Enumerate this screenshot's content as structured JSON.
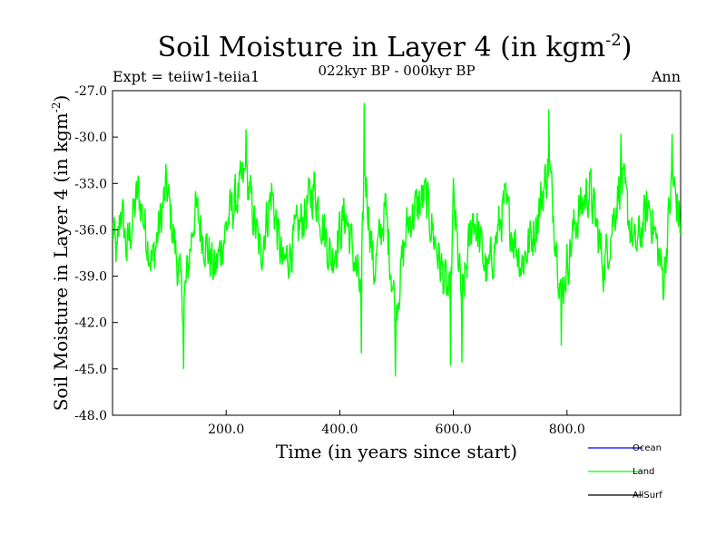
{
  "chart_data": {
    "type": "line",
    "title": "Soil Moisture in Layer 4 (in kgm",
    "title_superscript": "-2",
    "title_close": ")",
    "subtitle": "022kyr BP - 000kyr BP",
    "left_label": "Expt = teiiw1-teiia1",
    "right_label": "Ann",
    "xlabel": "Time (in years since start)",
    "ylabel": "Soil Moisture in Layer 4 (in kgm",
    "ylabel_superscript": "-2",
    "ylabel_close": ")",
    "xlim": [
      0,
      1000
    ],
    "ylim": [
      -48,
      -27
    ],
    "x_ticks": [
      200,
      400,
      600,
      800
    ],
    "x_tick_labels": [
      "200.0",
      "400.0",
      "600.0",
      "800.0"
    ],
    "y_ticks": [
      -27,
      -30,
      -33,
      -36,
      -39,
      -42,
      -45,
      -48
    ],
    "y_tick_labels": [
      "-27.0",
      "-30.0",
      "-33.0",
      "-36.0",
      "-39.0",
      "-42.0",
      "-45.0",
      "-48.0"
    ],
    "grid": false,
    "legend_position": "bottom-right",
    "series": [
      {
        "name": "Ocean",
        "color": "#0000ff",
        "values": []
      },
      {
        "name": "Land",
        "color": "#00ff00",
        "values": []
      },
      {
        "name": "AllSurf",
        "color": "#000000",
        "values": []
      }
    ],
    "key_points": [
      [
        0,
        -36.0
      ],
      [
        8,
        -39.5
      ],
      [
        15,
        -33.0
      ],
      [
        25,
        -38.5
      ],
      [
        45,
        -31.5
      ],
      [
        70,
        -40.0
      ],
      [
        95,
        -31.0
      ],
      [
        125,
        -45.0
      ],
      [
        145,
        -33.5
      ],
      [
        180,
        -41.0
      ],
      [
        205,
        -34.5
      ],
      [
        235,
        -29.5
      ],
      [
        260,
        -39.0
      ],
      [
        280,
        -31.5
      ],
      [
        300,
        -40.5
      ],
      [
        330,
        -35.5
      ],
      [
        355,
        -31.0
      ],
      [
        385,
        -39.5
      ],
      [
        410,
        -34.0
      ],
      [
        438,
        -44.0
      ],
      [
        443,
        -27.8
      ],
      [
        460,
        -41.0
      ],
      [
        480,
        -33.5
      ],
      [
        498,
        -45.5
      ],
      [
        520,
        -35.0
      ],
      [
        550,
        -32.0
      ],
      [
        575,
        -39.5
      ],
      [
        595,
        -44.8
      ],
      [
        600,
        -32.5
      ],
      [
        615,
        -44.6
      ],
      [
        635,
        -34.0
      ],
      [
        660,
        -41.5
      ],
      [
        690,
        -33.0
      ],
      [
        720,
        -40.0
      ],
      [
        745,
        -35.5
      ],
      [
        768,
        -28.2
      ],
      [
        790,
        -43.5
      ],
      [
        815,
        -35.0
      ],
      [
        840,
        -31.0
      ],
      [
        865,
        -40.5
      ],
      [
        895,
        -29.8
      ],
      [
        920,
        -38.5
      ],
      [
        945,
        -33.0
      ],
      [
        970,
        -42.0
      ],
      [
        985,
        -29.8
      ],
      [
        1000,
        -35.5
      ]
    ]
  }
}
